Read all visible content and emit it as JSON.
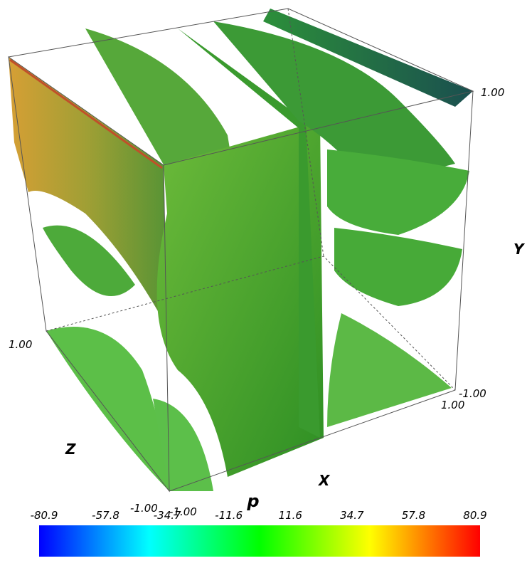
{
  "axes": {
    "x": {
      "label": "X",
      "ticks": [
        "-1.00",
        "1.00"
      ]
    },
    "y": {
      "label": "Y",
      "ticks": [
        "-1.00",
        "1.00"
      ]
    },
    "z": {
      "label": "Z",
      "ticks": [
        "-1.00",
        "1.00"
      ]
    }
  },
  "colorbar": {
    "title": "p",
    "ticks": [
      "-80.9",
      "-57.8",
      "-34.7",
      "-11.6",
      "11.6",
      "34.7",
      "57.8",
      "80.9"
    ],
    "colors": [
      "#0000ff",
      "#00ffff",
      "#00ff00",
      "#ffff00",
      "#ff0000"
    ]
  }
}
